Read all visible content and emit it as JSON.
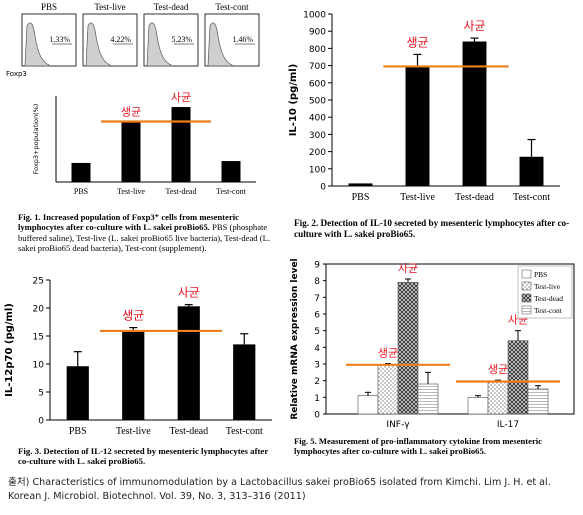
{
  "chart_data": [
    {
      "id": "flow",
      "type": "histogram",
      "ylabel": "Foxp3",
      "panels": [
        {
          "label": "PBS",
          "value": "1.33%"
        },
        {
          "label": "Test-live",
          "value": "4.22%"
        },
        {
          "label": "Test-dead",
          "value": "5.23%"
        },
        {
          "label": "Test-cont",
          "value": "1.46%"
        }
      ]
    },
    {
      "id": "fig1",
      "type": "bar",
      "categories": [
        "PBS",
        "Test-live",
        "Test-dead",
        "Test-cont"
      ],
      "values": [
        1.33,
        4.22,
        5.23,
        1.46
      ],
      "ylabel": "Foxp3+population(%)",
      "ylim": [
        0,
        6
      ],
      "reference_line": 4.22,
      "annotations": [
        {
          "text": "생균",
          "category": "Test-live"
        },
        {
          "text": "사균",
          "category": "Test-dead"
        }
      ],
      "caption": {
        "number": "Fig. 1.",
        "title": "Increased population of Foxp3⁺ cells from mesenteric lymphocytes after co-culture with L. sakei proBio65.",
        "text": "PBS (phosphate buffered saline), Test-live (L. sakei proBio65 live bacteria), Test-dead (L. sakei proBio65 dead bacteria), Test-cont (supplement)."
      }
    },
    {
      "id": "fig2",
      "type": "bar",
      "categories": [
        "PBS",
        "Test-live",
        "Test-dead",
        "Test-cont"
      ],
      "values": [
        15,
        690,
        840,
        170
      ],
      "errors": [
        0,
        75,
        20,
        100
      ],
      "ylabel": "IL-10 (pg/ml)",
      "ylim": [
        0,
        1000
      ],
      "yticks": [
        0,
        100,
        200,
        300,
        400,
        500,
        600,
        700,
        800,
        900,
        1000
      ],
      "reference_line": 695,
      "annotations": [
        {
          "text": "생균",
          "category": "Test-live"
        },
        {
          "text": "사균",
          "category": "Test-dead"
        }
      ],
      "caption": {
        "number": "Fig. 2.",
        "title": "Detection of IL-10 secreted by mesenteric lymphocytes after co-culture with L. sakei proBio65.",
        "text": ""
      }
    },
    {
      "id": "fig3",
      "type": "bar",
      "categories": [
        "PBS",
        "Test-live",
        "Test-dead",
        "Test-cont"
      ],
      "values": [
        9.6,
        15.9,
        20.3,
        13.5
      ],
      "errors": [
        2.6,
        0.6,
        0.3,
        1.9
      ],
      "ylabel": "IL-12p70 (pg/ml)",
      "ylim": [
        0,
        25
      ],
      "yticks": [
        0,
        5,
        10,
        15,
        20,
        25
      ],
      "reference_line": 15.9,
      "annotations": [
        {
          "text": "생균",
          "category": "Test-live"
        },
        {
          "text": "사균",
          "category": "Test-dead"
        }
      ],
      "caption": {
        "number": "Fig. 3.",
        "title": "Detection of IL-12 secreted by mesenteric lymphocytes after co-culture with L. sakei proBio65.",
        "text": ""
      }
    },
    {
      "id": "fig5",
      "type": "bar",
      "groups": [
        "INF-γ",
        "IL-17"
      ],
      "series": [
        {
          "name": "PBS",
          "values": [
            1.1,
            1.0
          ],
          "errors": [
            0.2,
            0.1
          ]
        },
        {
          "name": "Test-live",
          "values": [
            2.95,
            1.95
          ],
          "errors": [
            0.08,
            0.08
          ]
        },
        {
          "name": "Test-dead",
          "values": [
            7.9,
            4.4
          ],
          "errors": [
            0.2,
            0.6
          ]
        },
        {
          "name": "Test-cont",
          "values": [
            1.8,
            1.5
          ],
          "errors": [
            0.7,
            0.2
          ]
        }
      ],
      "ylabel": "Relative mRNA expression level",
      "ylim": [
        0,
        9
      ],
      "yticks": [
        0,
        1,
        2,
        3,
        4,
        5,
        6,
        7,
        8,
        9
      ],
      "reference_lines": [
        2.95,
        1.95
      ],
      "legend": "top-right",
      "annotations": [
        {
          "text": "사균",
          "group": "INF-γ",
          "series": "Test-dead"
        },
        {
          "text": "생균",
          "group": "INF-γ",
          "series": "Test-live"
        },
        {
          "text": "사균",
          "group": "IL-17",
          "series": "Test-dead"
        },
        {
          "text": "생균",
          "group": "IL-17",
          "series": "Test-live"
        }
      ],
      "caption": {
        "number": "Fig. 5.",
        "title": "Measurement of pro-inflammatory cytokine from mesenteric lymphocytes after co-culture with L. sakei proBio65.",
        "text": ""
      }
    }
  ],
  "colors": {
    "bar": "#000000",
    "reference_line": "#f07d1e",
    "annotation": "#e8101c",
    "histogram_fill": "#cfcfcf"
  },
  "source": {
    "text": "출처) Characteristics of immunomodulation by a Lactobacillus sakei proBio65 isolated from Kimchi. Lim J. H. et al. Korean J. Microbiol. Biotechnol. Vol. 39, No. 3, 313–316 (2011)"
  }
}
